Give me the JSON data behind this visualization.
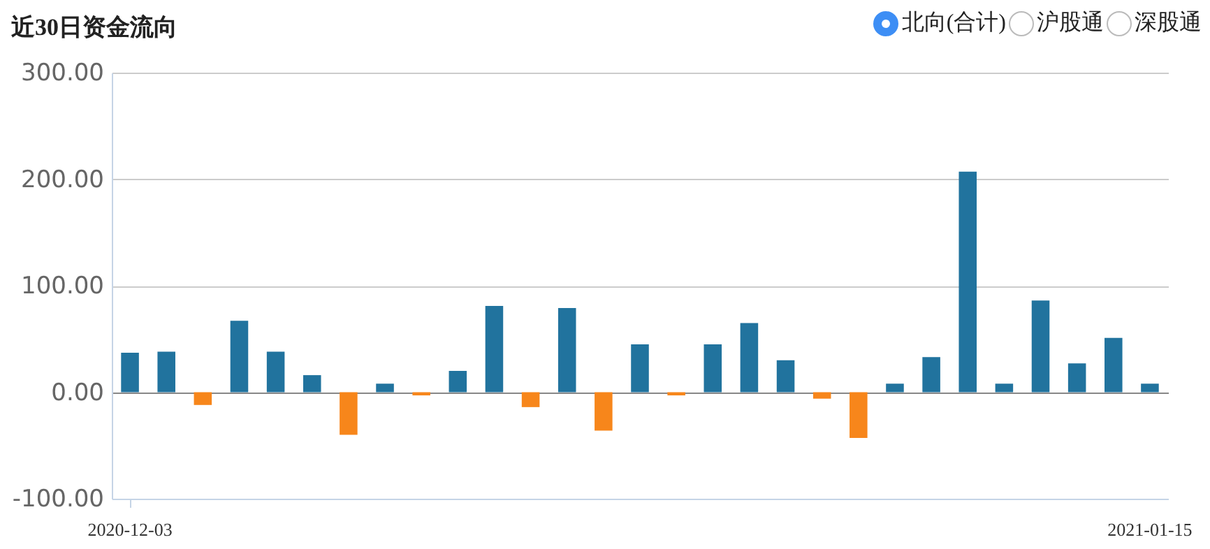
{
  "chart_data": {
    "type": "bar",
    "title": "近30日资金流向",
    "categories": [
      "2020-12-03",
      null,
      null,
      null,
      null,
      null,
      null,
      null,
      null,
      null,
      null,
      null,
      null,
      null,
      null,
      null,
      null,
      null,
      null,
      null,
      null,
      null,
      null,
      null,
      null,
      null,
      null,
      null,
      "2021-01-15"
    ],
    "series": [
      {
        "name": "北向(合计)",
        "values": [
          37,
          38,
          -12,
          67,
          38,
          16,
          -40,
          8,
          -3,
          20,
          81,
          -14,
          79,
          -36,
          45,
          -3,
          45,
          65,
          30,
          -6,
          -43,
          8,
          33,
          207,
          8,
          86,
          27,
          51,
          8
        ],
        "colors": [
          "#21739e",
          "#21739e",
          "#f7861b",
          "#21739e",
          "#21739e",
          "#21739e",
          "#f7861b",
          "#21739e",
          "#f7861b",
          "#21739e",
          "#21739e",
          "#f7861b",
          "#21739e",
          "#f7861b",
          "#21739e",
          "#f7861b",
          "#21739e",
          "#21739e",
          "#21739e",
          "#f7861b",
          "#f7861b",
          "#21739e",
          "#21739e",
          "#21739e",
          "#21739e",
          "#21739e",
          "#21739e",
          "#21739e",
          "#21739e"
        ]
      }
    ],
    "annotations": [
      "沪股通",
      "深股通"
    ],
    "ylim": [
      -100,
      300
    ],
    "yticks": [
      {
        "value": -100,
        "label": "-100.00"
      },
      {
        "value": 0,
        "label": "0.00"
      },
      {
        "value": 100,
        "label": "100.00"
      },
      {
        "value": 200,
        "label": "200.00"
      },
      {
        "value": 300,
        "label": "300.00"
      }
    ],
    "grid": "y",
    "legend": "top right"
  }
}
